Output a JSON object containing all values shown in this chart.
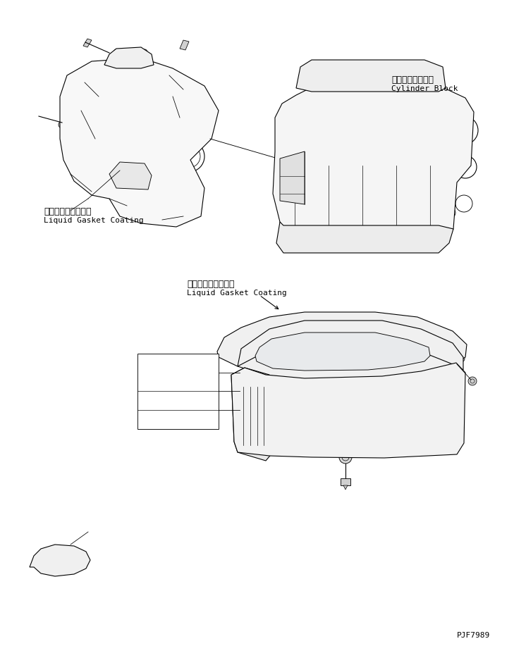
{
  "bg_color": "#ffffff",
  "line_color": "#000000",
  "line_width": 0.8,
  "fig_width": 7.29,
  "fig_height": 9.17,
  "label1_jp": "液状ガスケット塗布",
  "label1_en": "Liquid Gasket Coating",
  "label2_jp": "シリンダブロック",
  "label2_en": "Cylinder Block",
  "label3_jp": "液状ガスケット塗布",
  "label3_en": "Liquid Gasket Coating",
  "part_number": "PJF7989",
  "font_size_jp": 9,
  "font_size_en": 8,
  "font_size_pn": 8
}
